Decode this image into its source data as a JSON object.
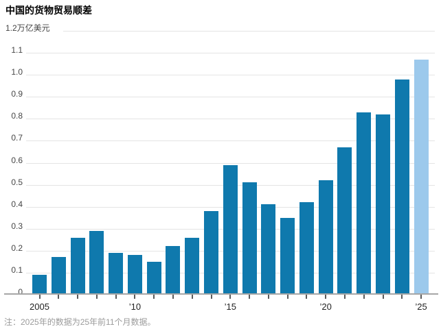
{
  "chart_data": {
    "type": "bar",
    "title": "中国的货物贸易顺差",
    "unit_top_label": "1.2万亿美元",
    "unit": "万亿美元",
    "categories": [
      "2005",
      "2006",
      "2007",
      "2008",
      "2009",
      "2010",
      "2011",
      "2012",
      "2013",
      "2014",
      "2015",
      "2016",
      "2017",
      "2018",
      "2019",
      "2020",
      "2021",
      "2022",
      "2023",
      "2024",
      "2025"
    ],
    "values": [
      0.09,
      0.17,
      0.26,
      0.29,
      0.19,
      0.18,
      0.15,
      0.22,
      0.26,
      0.38,
      0.59,
      0.51,
      0.41,
      0.35,
      0.42,
      0.52,
      0.67,
      0.83,
      0.82,
      0.98,
      1.07
    ],
    "highlight_index": 20,
    "ylim": [
      0,
      1.2
    ],
    "ytick_step": 0.1,
    "ytick_labels": [
      "0",
      "0.1",
      "0.2",
      "0.3",
      "0.4",
      "0.5",
      "0.6",
      "0.7",
      "0.8",
      "0.9",
      "1.0",
      "1.1"
    ],
    "xtick_labels": [
      {
        "index": 0,
        "label": "2005"
      },
      {
        "index": 5,
        "label": "’10"
      },
      {
        "index": 10,
        "label": "’15"
      },
      {
        "index": 15,
        "label": "’20"
      },
      {
        "index": 20,
        "label": "’25"
      }
    ],
    "grid": "horizontal",
    "legend_position": "none",
    "footnote": "注：2025年的数据为25年前11个月数据。",
    "colors": {
      "bar": "#0f79ad",
      "bar_partial": "#9cc9ec",
      "gridline": "#e4e4e4",
      "axis_line": "#a6a6a6",
      "tick": "#5a5a5a",
      "ytick_text": "#454545",
      "xtick_text": "#222222",
      "title_text": "#000000",
      "footnote_text": "#9b9b9b",
      "background": "#ffffff"
    }
  }
}
